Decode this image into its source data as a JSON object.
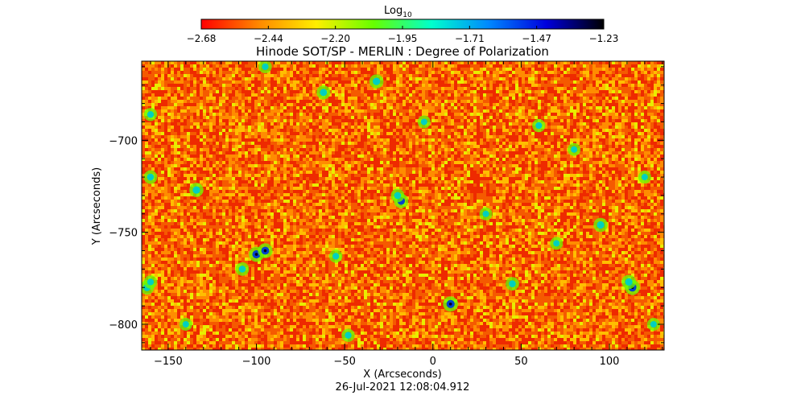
{
  "chart_data": {
    "type": "heatmap",
    "title": "Hinode SOT/SP - MERLIN : Degree of Polarization",
    "xlabel": "X (Arcseconds)",
    "ylabel": "Y (Arcseconds)",
    "timestamp": "26-Jul-2021 12:08:04.912",
    "xlim": [
      -165,
      131
    ],
    "ylim": [
      -814,
      -657
    ],
    "x_ticks": [
      -150,
      -100,
      -50,
      0,
      50,
      100
    ],
    "y_ticks": [
      -700,
      -750,
      -800
    ],
    "x_tick_labels": [
      "−150",
      "−100",
      "−50",
      "0",
      "50",
      "100"
    ],
    "y_tick_labels": [
      "−700",
      "−750",
      "−800"
    ],
    "colorbar": {
      "label_base": "Log",
      "label_sub": "10",
      "min": -2.68,
      "max": -1.23,
      "tick_labels": [
        "−2.68",
        "−2.44",
        "−2.20",
        "−1.95",
        "−1.71",
        "−1.47",
        "−1.23"
      ],
      "colormap": [
        "#ff0000",
        "#ff8800",
        "#ffee00",
        "#66ff00",
        "#00ffcc",
        "#0088ff",
        "#0000dd",
        "#000000"
      ]
    },
    "field_colors": [
      "#ee2a00",
      "#f55a00",
      "#ff8c00",
      "#ffbe00",
      "#e8ee00"
    ],
    "features": [
      {
        "x": -100,
        "y": -762,
        "level": 0.85
      },
      {
        "x": -95,
        "y": -760,
        "level": 0.8
      },
      {
        "x": -108,
        "y": -770,
        "level": 0.6
      },
      {
        "x": 113,
        "y": -780,
        "level": 0.85
      },
      {
        "x": 111,
        "y": -777,
        "level": 0.7
      },
      {
        "x": -162,
        "y": -780,
        "level": 0.7
      },
      {
        "x": -160,
        "y": -777,
        "level": 0.55
      },
      {
        "x": -18,
        "y": -733,
        "level": 0.75
      },
      {
        "x": -20,
        "y": -730,
        "level": 0.6
      },
      {
        "x": -32,
        "y": -668,
        "level": 0.7
      },
      {
        "x": -62,
        "y": -674,
        "level": 0.65
      },
      {
        "x": 10,
        "y": -789,
        "level": 0.85
      },
      {
        "x": -134,
        "y": -727,
        "level": 0.7
      },
      {
        "x": 95,
        "y": -746,
        "level": 0.7
      },
      {
        "x": -160,
        "y": -720,
        "level": 0.6
      },
      {
        "x": -160,
        "y": -686,
        "level": 0.55
      },
      {
        "x": -95,
        "y": -660,
        "level": 0.55
      },
      {
        "x": 45,
        "y": -778,
        "level": 0.6
      },
      {
        "x": 60,
        "y": -692,
        "level": 0.55
      },
      {
        "x": -55,
        "y": -763,
        "level": 0.55
      },
      {
        "x": 30,
        "y": -740,
        "level": 0.5
      },
      {
        "x": 80,
        "y": -705,
        "level": 0.5
      },
      {
        "x": -140,
        "y": -800,
        "level": 0.5
      },
      {
        "x": -48,
        "y": -806,
        "level": 0.55
      },
      {
        "x": 125,
        "y": -800,
        "level": 0.5
      },
      {
        "x": -5,
        "y": -690,
        "level": 0.5
      },
      {
        "x": 70,
        "y": -756,
        "level": 0.5
      },
      {
        "x": 120,
        "y": -720,
        "level": 0.5
      }
    ]
  }
}
